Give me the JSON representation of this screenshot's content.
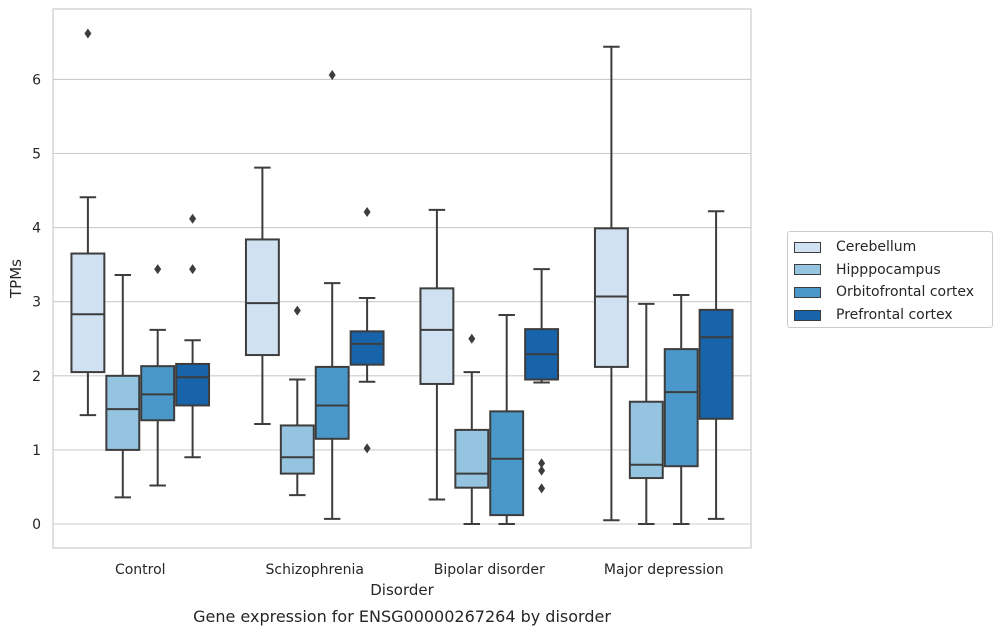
{
  "chart_data": {
    "type": "box",
    "xlabel": "Disorder",
    "ylabel": "TPMs",
    "caption": "Gene expression for ENSG00000267264 by disorder",
    "categories": [
      "Control",
      "Schizophrenia",
      "Bipolar disorder",
      "Major depression"
    ],
    "ylim": [
      -0.32,
      7.0
    ],
    "yticks": [
      0,
      1,
      2,
      3,
      4,
      5,
      6
    ],
    "grid": true,
    "legend_position": "right",
    "series": [
      {
        "name": "Cerebellum",
        "color": "#d0e1f2",
        "boxes": [
          {
            "whislo": 1.47,
            "q1": 2.05,
            "med": 2.83,
            "q3": 3.65,
            "whishi": 4.41,
            "fliers": [
              6.62
            ]
          },
          {
            "whislo": 1.35,
            "q1": 2.28,
            "med": 2.98,
            "q3": 3.84,
            "whishi": 4.81,
            "fliers": []
          },
          {
            "whislo": 0.33,
            "q1": 1.89,
            "med": 2.62,
            "q3": 3.18,
            "whishi": 4.24,
            "fliers": []
          },
          {
            "whislo": 0.05,
            "q1": 2.12,
            "med": 3.07,
            "q3": 3.99,
            "whishi": 6.44,
            "fliers": []
          }
        ]
      },
      {
        "name": "Hipppocampus",
        "color": "#94c4df",
        "boxes": [
          {
            "whislo": 0.36,
            "q1": 1.0,
            "med": 1.55,
            "q3": 2.0,
            "whishi": 3.36,
            "fliers": []
          },
          {
            "whislo": 0.39,
            "q1": 0.68,
            "med": 0.9,
            "q3": 1.33,
            "whishi": 1.95,
            "fliers": [
              2.88
            ]
          },
          {
            "whislo": 0.0,
            "q1": 0.49,
            "med": 0.68,
            "q3": 1.27,
            "whishi": 2.05,
            "fliers": [
              2.5
            ]
          },
          {
            "whislo": 0.0,
            "q1": 0.62,
            "med": 0.8,
            "q3": 1.65,
            "whishi": 2.97,
            "fliers": []
          }
        ]
      },
      {
        "name": "Orbitofrontal cortex",
        "color": "#4a98c9",
        "boxes": [
          {
            "whislo": 0.52,
            "q1": 1.4,
            "med": 1.75,
            "q3": 2.13,
            "whishi": 2.62,
            "fliers": [
              3.44
            ]
          },
          {
            "whislo": 0.07,
            "q1": 1.15,
            "med": 1.6,
            "q3": 2.12,
            "whishi": 3.25,
            "fliers": [
              6.06
            ]
          },
          {
            "whislo": 0.0,
            "q1": 0.12,
            "med": 0.88,
            "q3": 1.52,
            "whishi": 2.82,
            "fliers": []
          },
          {
            "whislo": 0.0,
            "q1": 0.78,
            "med": 1.78,
            "q3": 2.36,
            "whishi": 3.09,
            "fliers": []
          }
        ]
      },
      {
        "name": "Prefrontal cortex",
        "color": "#1764ab",
        "boxes": [
          {
            "whislo": 0.9,
            "q1": 1.6,
            "med": 1.98,
            "q3": 2.16,
            "whishi": 2.48,
            "fliers": [
              3.44,
              4.12
            ]
          },
          {
            "whislo": 1.92,
            "q1": 2.15,
            "med": 2.43,
            "q3": 2.6,
            "whishi": 3.05,
            "fliers": [
              1.02,
              4.21
            ]
          },
          {
            "whislo": 1.91,
            "q1": 1.95,
            "med": 2.29,
            "q3": 2.63,
            "whishi": 3.44,
            "fliers": [
              0.48,
              0.72,
              0.82
            ]
          },
          {
            "whislo": 0.07,
            "q1": 1.42,
            "med": 2.52,
            "q3": 2.89,
            "whishi": 4.22,
            "fliers": []
          }
        ]
      }
    ]
  }
}
